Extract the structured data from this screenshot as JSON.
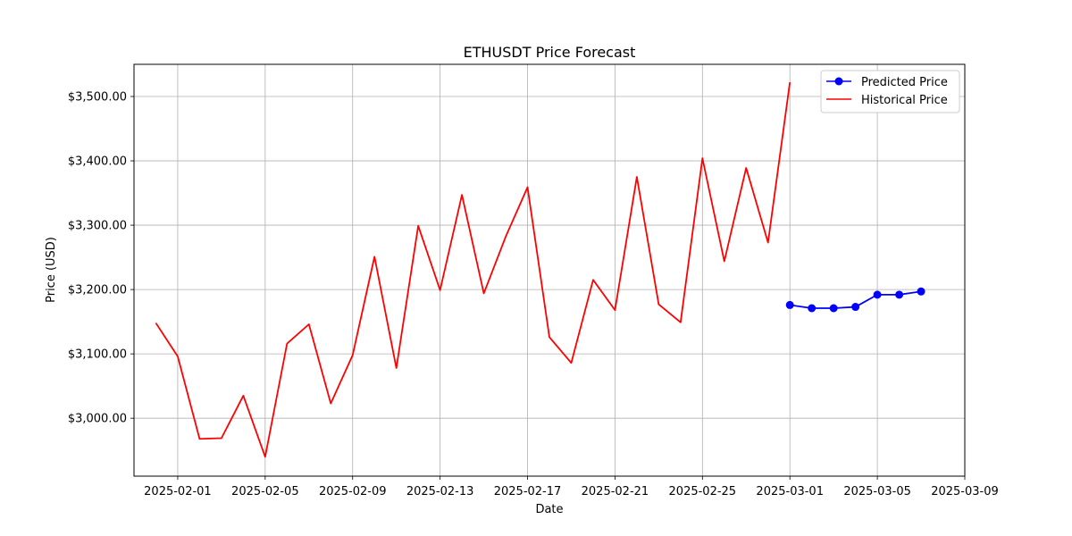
{
  "chart_data": {
    "type": "line",
    "title": "ETHUSDT Price Forecast",
    "xlabel": "Date",
    "ylabel": "Price (USD)",
    "xlim": [
      "2025-01-30",
      "2025-03-09"
    ],
    "ylim": [
      2910,
      3550
    ],
    "grid": true,
    "legend_position": "top-right",
    "x_ticks": [
      "2025-02-01",
      "2025-02-05",
      "2025-02-09",
      "2025-02-13",
      "2025-02-17",
      "2025-02-21",
      "2025-02-25",
      "2025-03-01",
      "2025-03-05",
      "2025-03-09"
    ],
    "y_ticks": [
      3000,
      3100,
      3200,
      3300,
      3400,
      3500
    ],
    "y_tick_labels": [
      "$3,000.00",
      "$3,100.00",
      "$3,200.00",
      "$3,300.00",
      "$3,400.00",
      "$3,500.00"
    ],
    "series": [
      {
        "name": "Predicted Price",
        "color": "#0000ff",
        "marker": "circle",
        "x": [
          "2025-03-01",
          "2025-03-02",
          "2025-03-03",
          "2025-03-04",
          "2025-03-05",
          "2025-03-06",
          "2025-03-07"
        ],
        "y": [
          3176,
          3171,
          3171,
          3173,
          3192,
          3192,
          3197
        ]
      },
      {
        "name": "Historical Price",
        "color": "#ff0000",
        "marker": "none",
        "x": [
          "2025-01-31",
          "2025-02-01",
          "2025-02-02",
          "2025-02-03",
          "2025-02-04",
          "2025-02-05",
          "2025-02-06",
          "2025-02-07",
          "2025-02-08",
          "2025-02-09",
          "2025-02-10",
          "2025-02-11",
          "2025-02-12",
          "2025-02-13",
          "2025-02-14",
          "2025-02-15",
          "2025-02-16",
          "2025-02-17",
          "2025-02-18",
          "2025-02-19",
          "2025-02-20",
          "2025-02-21",
          "2025-02-22",
          "2025-02-23",
          "2025-02-24",
          "2025-02-25",
          "2025-02-26",
          "2025-02-27",
          "2025-02-28",
          "2025-03-01"
        ],
        "y": [
          3148,
          3096,
          2968,
          2969,
          3035,
          2940,
          3116,
          3146,
          3023,
          3098,
          3251,
          3078,
          3299,
          3199,
          3347,
          3194,
          3282,
          3359,
          3126,
          3086,
          3215,
          3168,
          3375,
          3177,
          3149,
          3404,
          3244,
          3389,
          3273,
          3522
        ]
      }
    ]
  }
}
